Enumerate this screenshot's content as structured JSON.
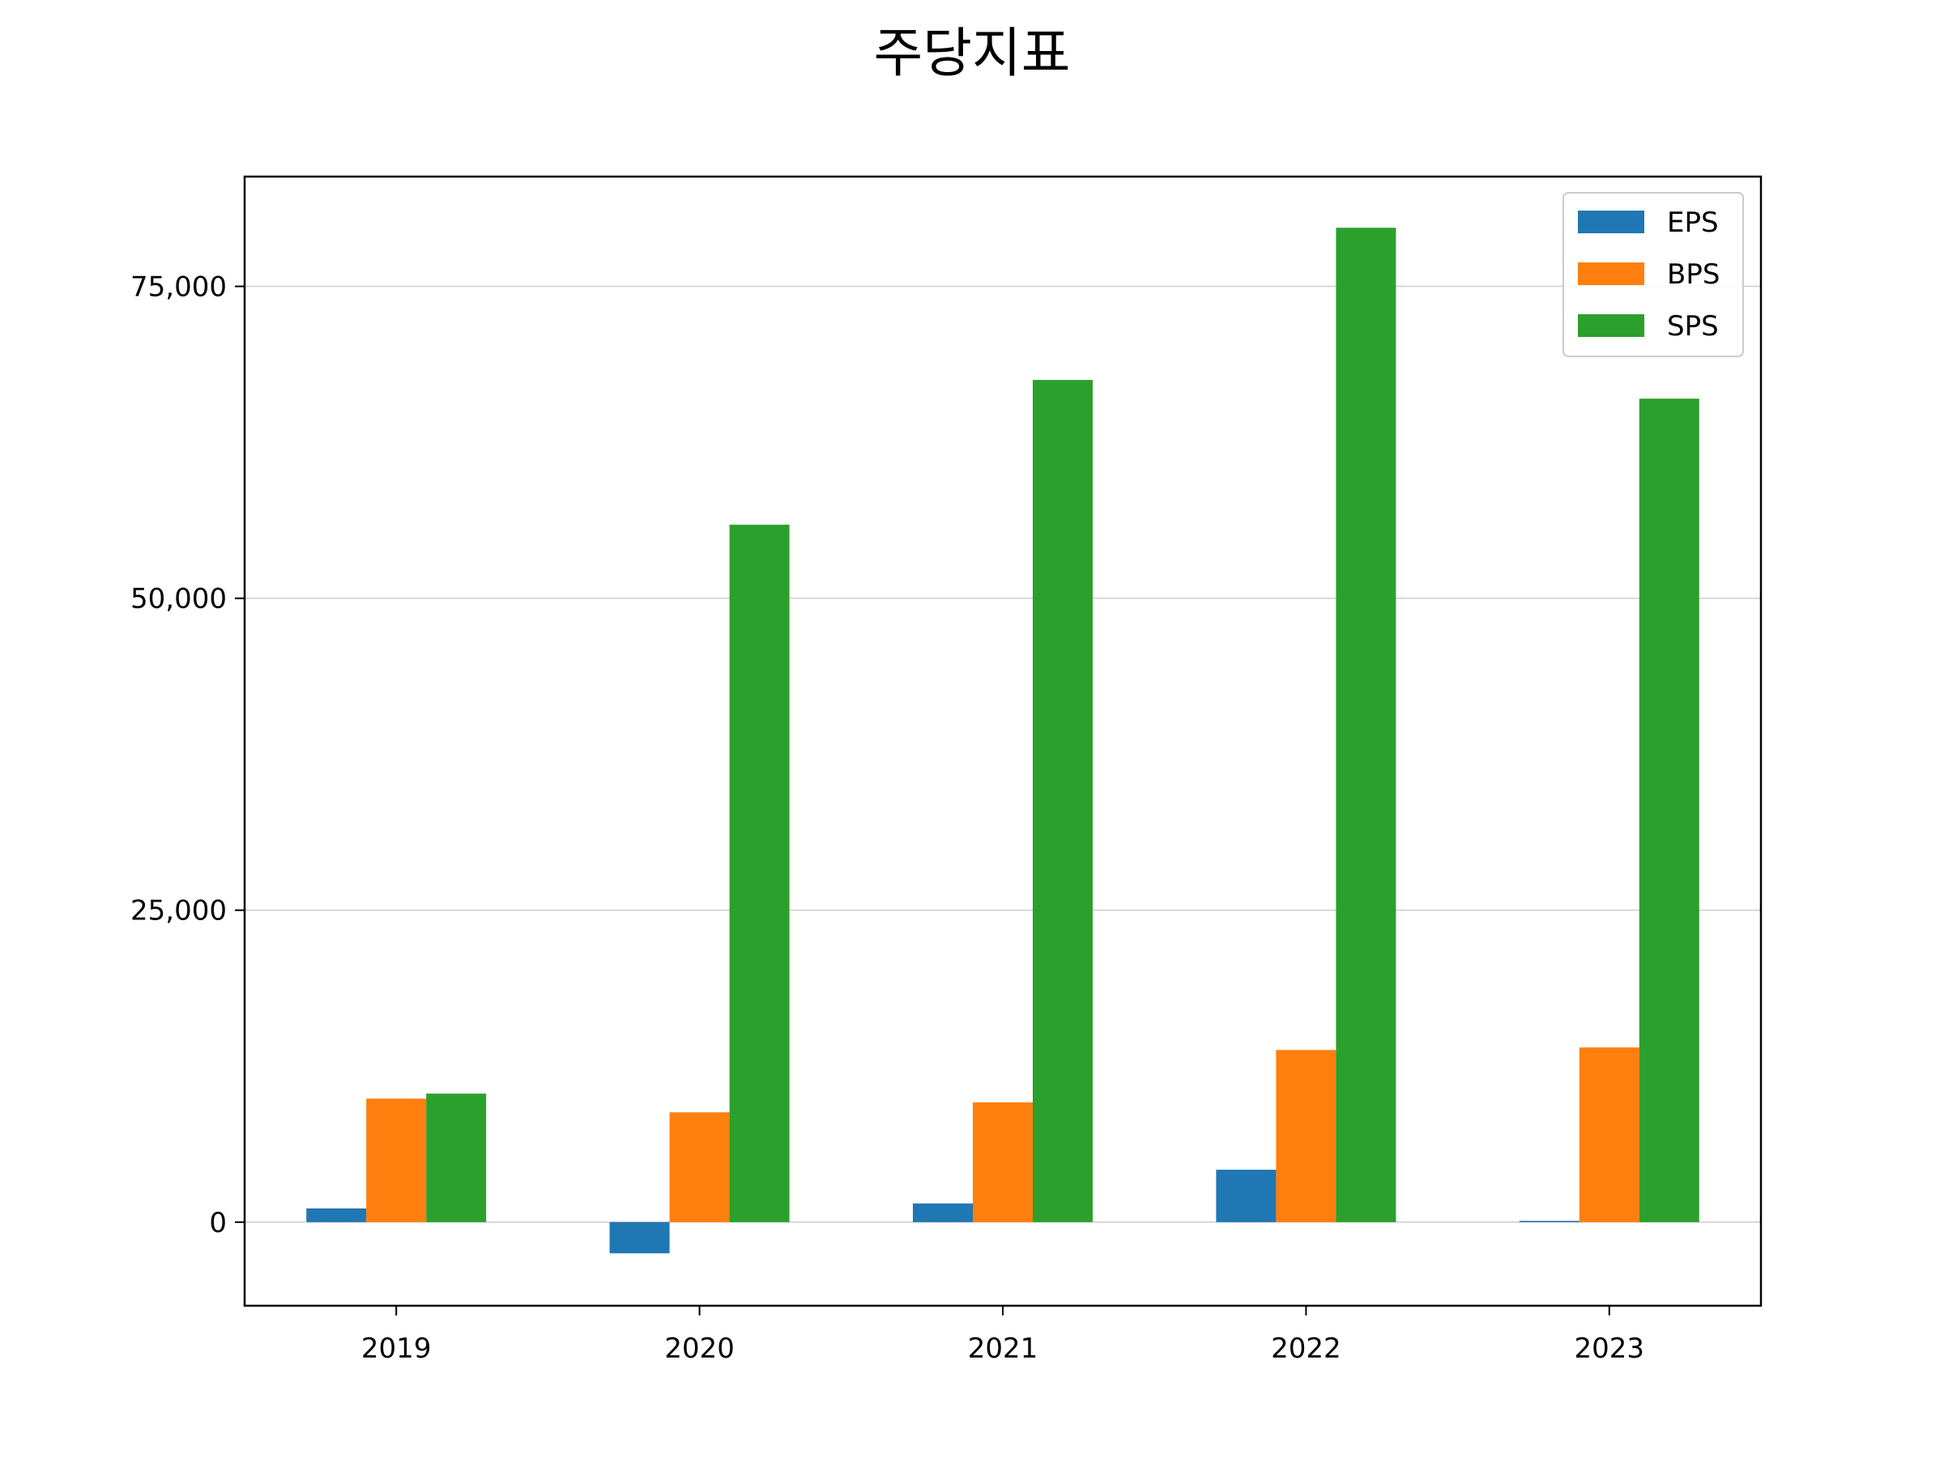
{
  "chart_data": {
    "type": "bar",
    "title": "주당지표",
    "xlabel": "",
    "ylabel": "",
    "categories": [
      "2019",
      "2020",
      "2021",
      "2022",
      "2023"
    ],
    "series": [
      {
        "name": "EPS",
        "color": "#1f77b4",
        "values": [
          1100,
          -2500,
          1500,
          4200,
          100
        ]
      },
      {
        "name": "BPS",
        "color": "#ff7f0e",
        "values": [
          9900,
          8800,
          9600,
          13800,
          14000
        ]
      },
      {
        "name": "SPS",
        "color": "#2ca02c",
        "values": [
          10300,
          55900,
          67500,
          79700,
          66000
        ]
      }
    ],
    "ylim": [
      -6700,
      83800
    ],
    "yticks": [
      0,
      25000,
      50000,
      75000
    ],
    "ytick_labels": [
      "0",
      "25,000",
      "50,000",
      "75,000"
    ],
    "grid": "horizontal",
    "legend_position": "top-right"
  }
}
